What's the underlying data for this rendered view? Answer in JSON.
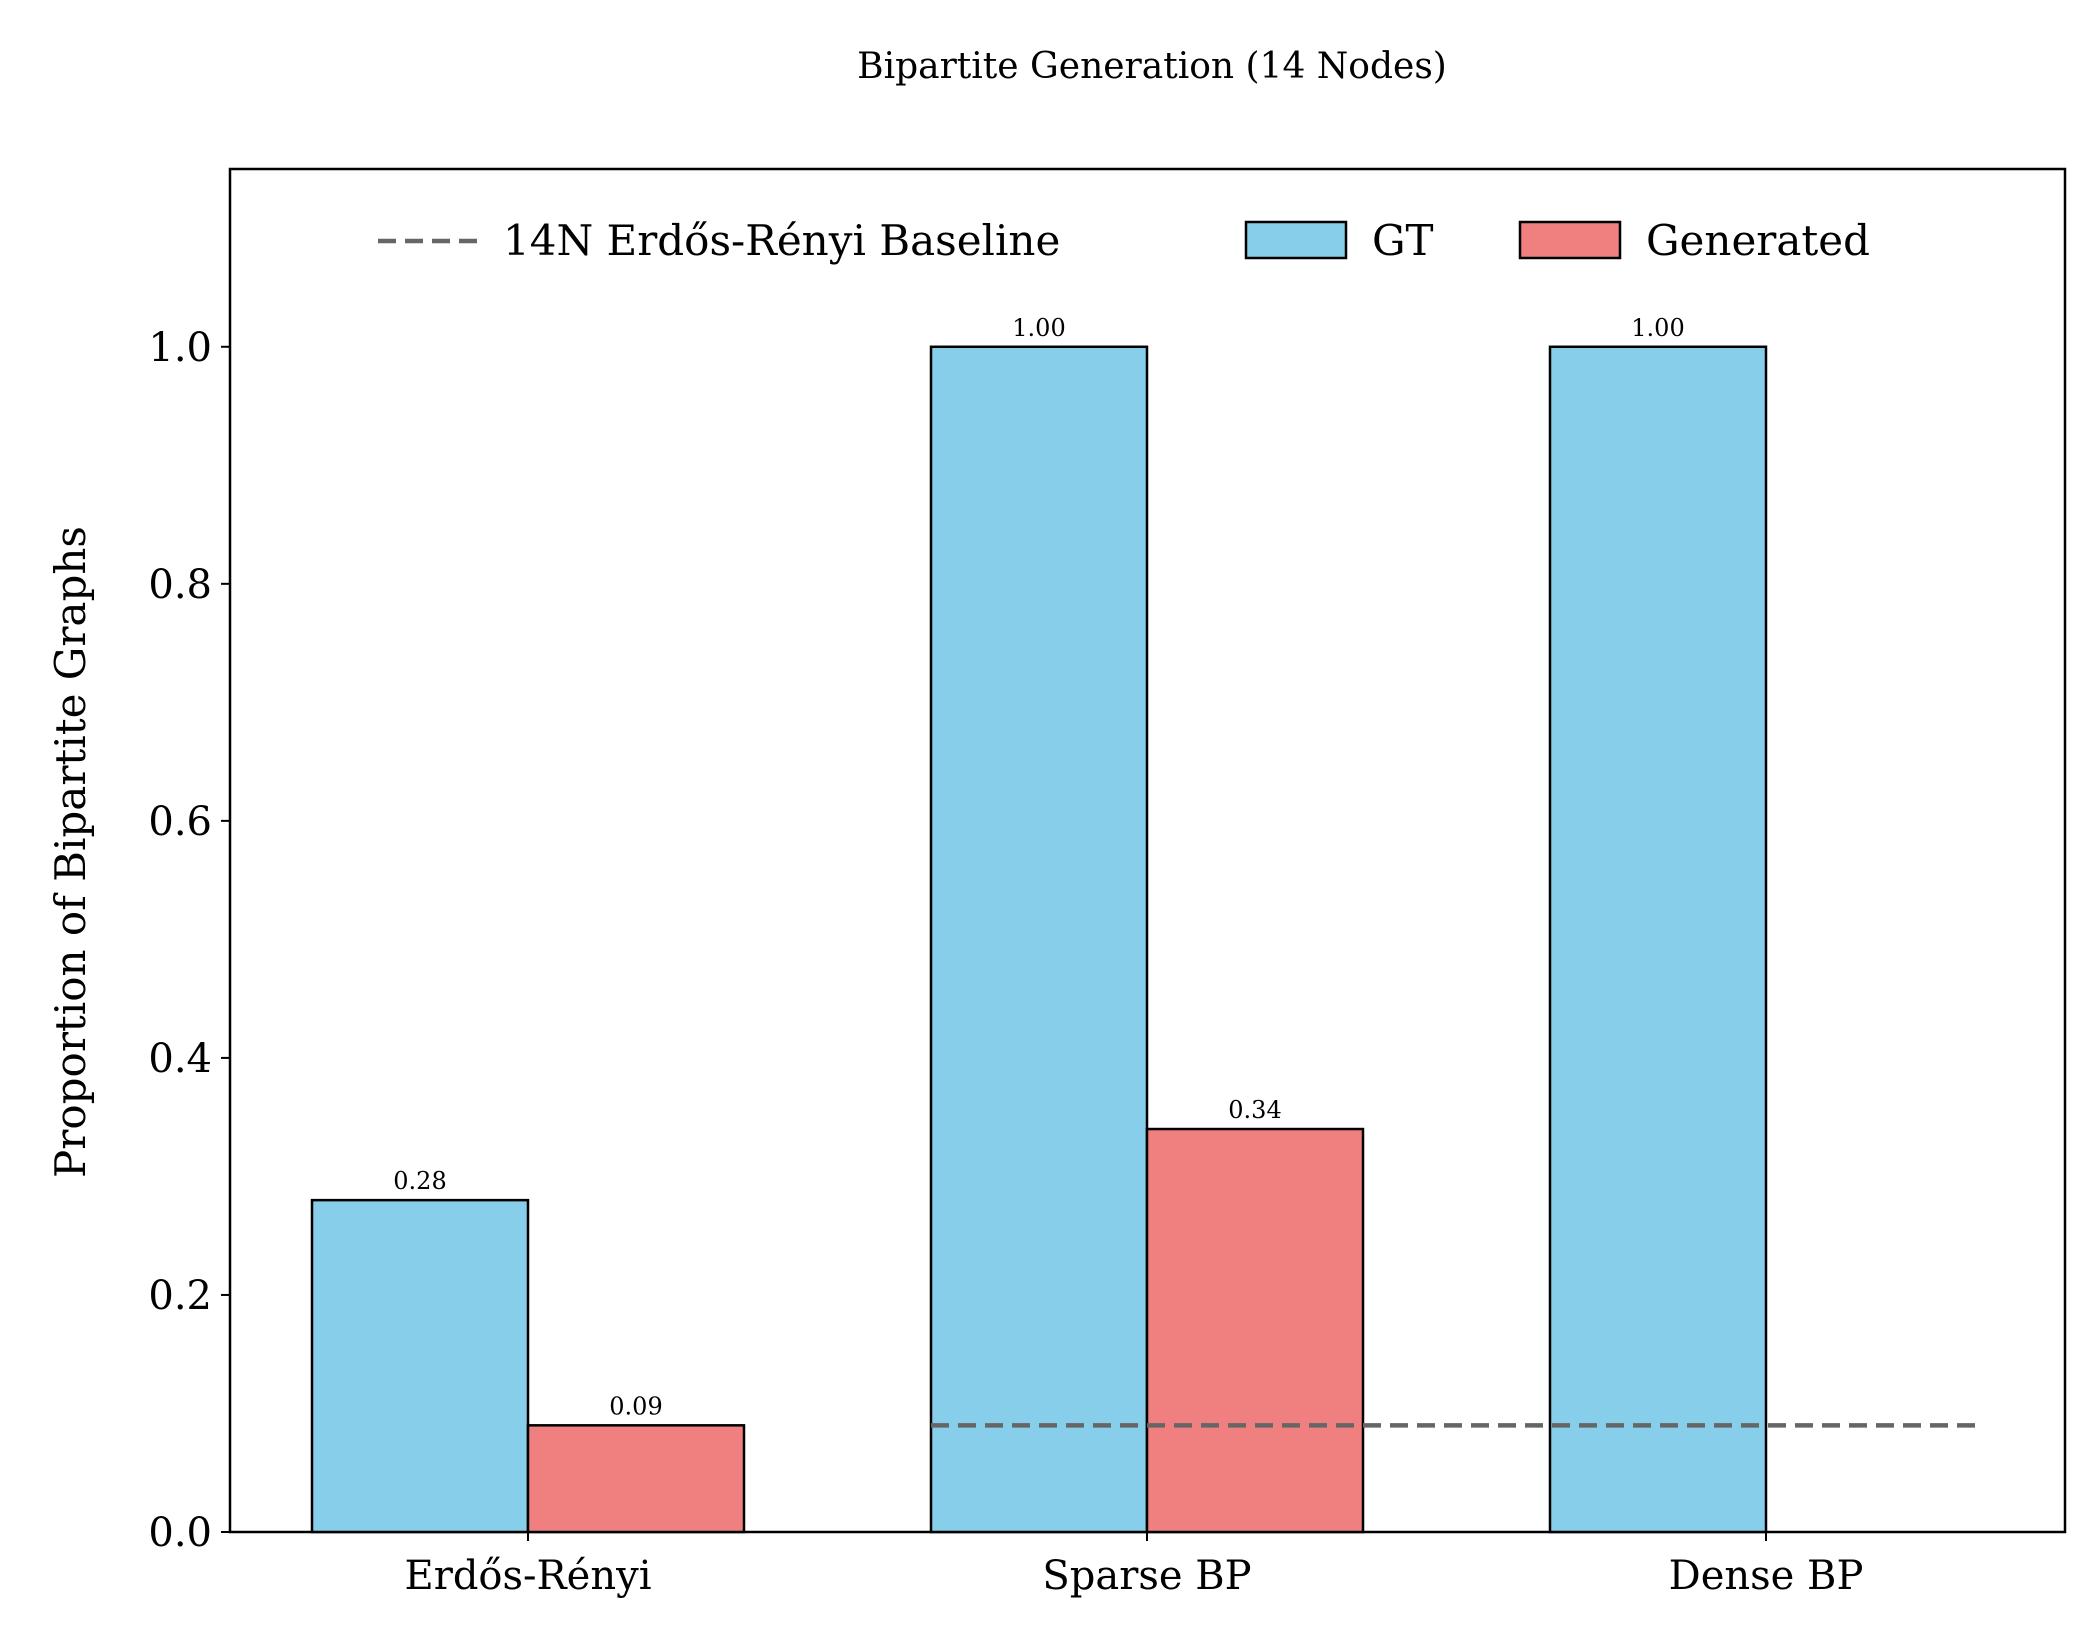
{
  "chart_data": {
    "type": "bar",
    "title": "Bipartite Generation (14 Nodes)",
    "xlabel": "",
    "ylabel": "Proportion of Bipartite Graphs",
    "categories": [
      "Erdős-Rényi",
      "Sparse BP",
      "Dense BP"
    ],
    "series": [
      {
        "name": "GT",
        "values": [
          0.28,
          1.0,
          1.0
        ],
        "labels": [
          "0.28",
          "1.00",
          "1.00"
        ],
        "color": "#87CEEB"
      },
      {
        "name": "Generated",
        "values": [
          0.09,
          0.34,
          0.0
        ],
        "labels": [
          "0.09",
          "0.34",
          null
        ],
        "color": "#F08080"
      }
    ],
    "baseline": {
      "name": "14N Erdős-Rényi Baseline",
      "value": 0.09,
      "from_category": "Sparse BP",
      "color": "#666666",
      "style": "dashed"
    },
    "ylim": [
      0,
      1.15
    ],
    "yticks": [
      "0.0",
      "0.2",
      "0.4",
      "0.6",
      "0.8",
      "1.0"
    ],
    "grid": false,
    "legend_position": "top-center"
  }
}
